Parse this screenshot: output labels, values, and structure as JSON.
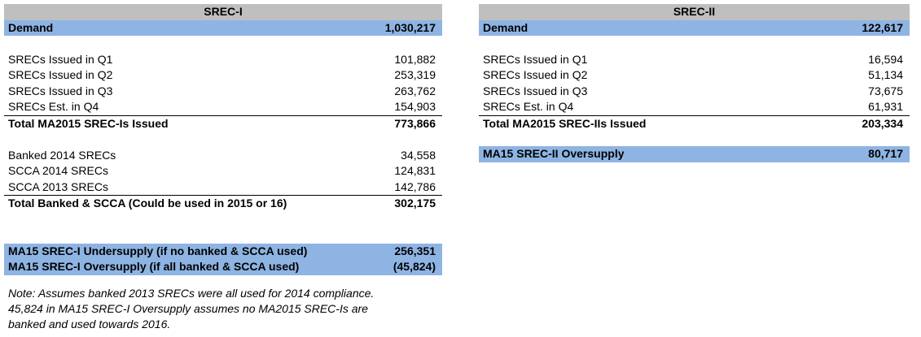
{
  "srec1": {
    "title": "SREC-I",
    "demand": {
      "label": "Demand",
      "value": "1,030,217"
    },
    "issued": [
      {
        "label": "SRECs Issued in Q1",
        "value": "101,882"
      },
      {
        "label": "SRECs Issued in Q2",
        "value": "253,319"
      },
      {
        "label": "SRECs Issued in Q3",
        "value": "263,762"
      },
      {
        "label": "SRECs Est. in Q4",
        "value": "154,903"
      }
    ],
    "total_issued": {
      "label": "Total MA2015 SREC-Is Issued",
      "value": "773,866"
    },
    "banked": [
      {
        "label": "Banked 2014 SRECs",
        "value": "34,558"
      },
      {
        "label": "SCCA 2014 SRECs",
        "value": "124,831"
      },
      {
        "label": "SCCA 2013 SRECs",
        "value": "142,786"
      }
    ],
    "total_banked": {
      "label": "Total Banked & SCCA (Could be used in 2015 or 16)",
      "value": "302,175"
    },
    "undersupply": {
      "label": "MA15 SREC-I Undersupply (if no banked & SCCA used)",
      "value": "256,351"
    },
    "oversupply": {
      "label": "MA15 SREC-I Oversupply (if all banked & SCCA used)",
      "value": "(45,824)"
    }
  },
  "srec2": {
    "title": "SREC-II",
    "demand": {
      "label": "Demand",
      "value": "122,617"
    },
    "issued": [
      {
        "label": "SRECs Issued in Q1",
        "value": "16,594"
      },
      {
        "label": "SRECs Issued in Q2",
        "value": "51,134"
      },
      {
        "label": "SRECs Issued in Q3",
        "value": "73,675"
      },
      {
        "label": "SRECs Est. in Q4",
        "value": "61,931"
      }
    ],
    "total_issued": {
      "label": "Total MA2015 SREC-IIs Issued",
      "value": "203,334"
    },
    "oversupply": {
      "label": "MA15 SREC-II Oversupply",
      "value": "80,717"
    }
  },
  "note": {
    "line1": "Note: Assumes banked 2013 SRECs were all used for 2014 compliance.",
    "line2": "45,824 in MA15 SREC-I Oversupply assumes no MA2015 SREC-Is are",
    "line3": "banked and used towards 2016."
  }
}
